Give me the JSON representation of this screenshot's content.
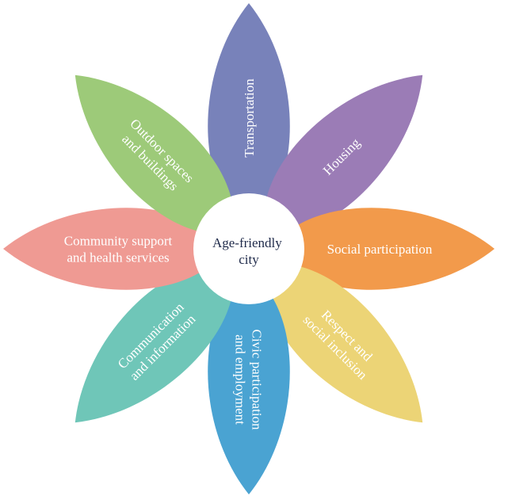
{
  "title": "",
  "center": {
    "lines": [
      "Age-friendly",
      "city"
    ]
  },
  "petals": [
    {
      "id": "transportation",
      "lines": [
        "Transportation"
      ],
      "color": "#7882ba"
    },
    {
      "id": "housing",
      "lines": [
        "Housing"
      ],
      "color": "#9b7cb6"
    },
    {
      "id": "social-participation",
      "lines": [
        "Social participation"
      ],
      "color": "#f29a4b"
    },
    {
      "id": "respect-and-social-inclusion",
      "lines": [
        "Respect and",
        "social inclusion"
      ],
      "color": "#ecd476"
    },
    {
      "id": "civic-participation-and-employment",
      "lines": [
        "Civic participation",
        "and employment"
      ],
      "color": "#4aa3d2"
    },
    {
      "id": "communication-and-information",
      "lines": [
        "Communication",
        "and information"
      ],
      "color": "#6fc6b8"
    },
    {
      "id": "community-support-and-health-services",
      "lines": [
        "Community support",
        "and health services"
      ],
      "color": "#ef9a93"
    },
    {
      "id": "outdoor-spaces-and-buildings",
      "lines": [
        "Outdoor spaces",
        "and buildings"
      ],
      "color": "#9dca79"
    }
  ],
  "center_color": "#ffffff"
}
